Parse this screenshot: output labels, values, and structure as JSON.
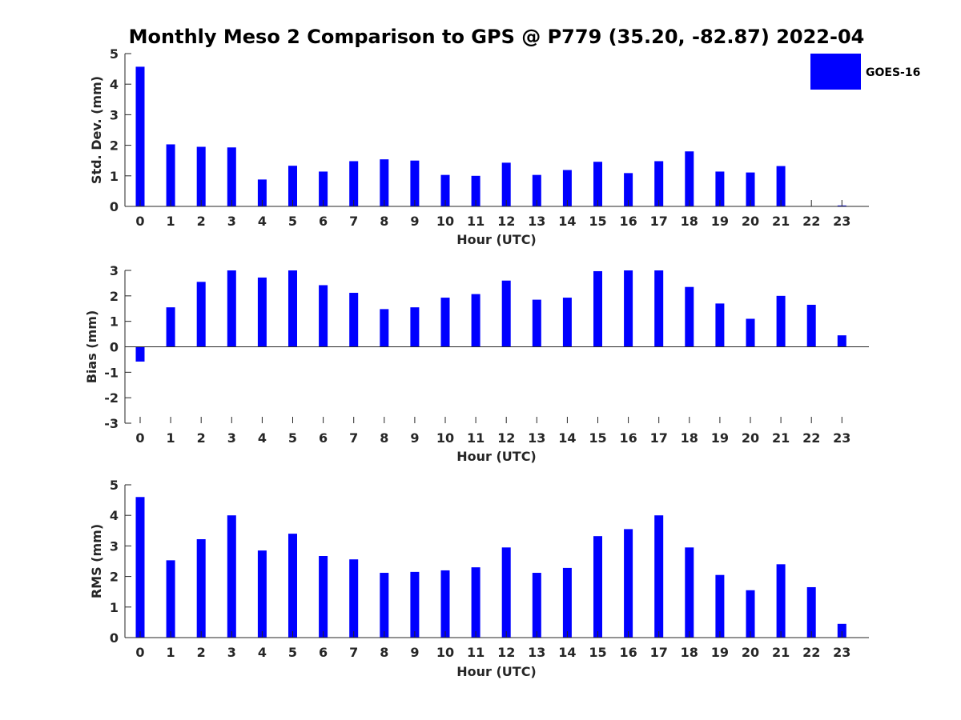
{
  "chart_data": {
    "title": "Monthly Meso 2 Comparison to GPS @ P779 (35.20, -82.87) 2022-04",
    "type": "bar",
    "legend": {
      "label": "GOES-16",
      "color": "#0000ff",
      "placement": "top-right"
    },
    "categories": [
      "0",
      "1",
      "2",
      "3",
      "4",
      "5",
      "6",
      "7",
      "8",
      "9",
      "10",
      "11",
      "12",
      "13",
      "14",
      "15",
      "16",
      "17",
      "18",
      "19",
      "20",
      "21",
      "22",
      "23"
    ],
    "panels": [
      {
        "name": "std",
        "xlabel": "Hour (UTC)",
        "ylabel": "Std. Dev. (mm)",
        "ylim": [
          0,
          5
        ],
        "yticks": [
          0,
          1,
          2,
          3,
          4,
          5
        ],
        "values": [
          4.57,
          2.03,
          1.95,
          1.93,
          0.88,
          1.33,
          1.14,
          1.48,
          1.54,
          1.5,
          1.03,
          1.0,
          1.43,
          1.03,
          1.19,
          1.46,
          1.09,
          1.48,
          1.8,
          1.14,
          1.11,
          1.32,
          0.0,
          0.03
        ]
      },
      {
        "name": "bias",
        "xlabel": "Hour (UTC)",
        "ylabel": "Bias (mm)",
        "ylim": [
          -3,
          3
        ],
        "yticks": [
          -3,
          -2,
          -1,
          0,
          1,
          2,
          3
        ],
        "values": [
          -0.58,
          1.55,
          2.55,
          3.0,
          2.72,
          3.0,
          2.42,
          2.12,
          1.48,
          1.55,
          1.93,
          2.07,
          2.6,
          1.85,
          1.93,
          2.97,
          3.0,
          3.0,
          2.35,
          1.7,
          1.1,
          2.0,
          1.65,
          0.45
        ]
      },
      {
        "name": "rms",
        "xlabel": "Hour (UTC)",
        "ylabel": "RMS (mm)",
        "ylim": [
          0,
          5
        ],
        "yticks": [
          0,
          1,
          2,
          3,
          4,
          5
        ],
        "values": [
          4.6,
          2.53,
          3.22,
          4.0,
          2.85,
          3.4,
          2.67,
          2.56,
          2.12,
          2.15,
          2.2,
          2.3,
          2.95,
          2.12,
          2.28,
          3.32,
          3.55,
          4.0,
          2.95,
          2.05,
          1.55,
          2.4,
          1.65,
          0.45
        ]
      }
    ],
    "grid": false
  }
}
